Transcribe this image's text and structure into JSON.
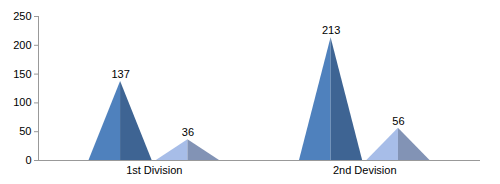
{
  "chart_data": {
    "type": "bar",
    "categories": [
      "1st Division",
      "2nd Devision"
    ],
    "series": [
      {
        "color": "#4f81bd",
        "values": [
          137,
          213
        ]
      },
      {
        "color": "#a7bde8",
        "values": [
          36,
          56
        ]
      }
    ],
    "ylim": [
      0,
      250
    ],
    "yticks": [
      0,
      50,
      100,
      150,
      200,
      250
    ],
    "grid": false,
    "data_labels": true
  }
}
